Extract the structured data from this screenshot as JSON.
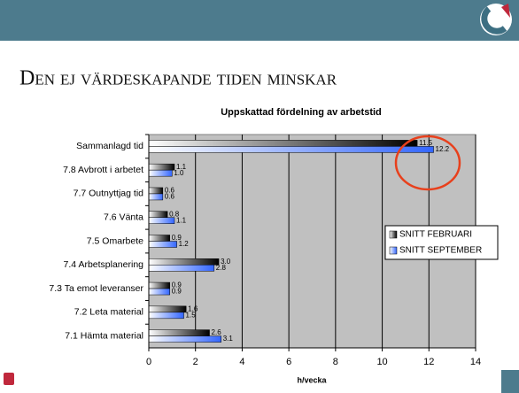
{
  "heading": "Den ej värdeskapande tiden minskar",
  "chart_data": {
    "type": "hbar",
    "title": "Uppskattad fördelning av arbetstid",
    "x_label": "h/vecka",
    "categories": [
      "Sammanlagd tid",
      "7.8 Avbrott i arbetet",
      "7.7 Outnyttjag tid",
      "7.6 Vänta",
      "7.5 Omarbete",
      "7.4 Arbetsplanering",
      "7.3 Ta emot leveranser",
      "7.2 Leta material",
      "7.1 Hämta material"
    ],
    "series": [
      {
        "name": "SNITT FEBRUARI",
        "color": "#000000",
        "values": [
          11.5,
          1.1,
          0.6,
          0.8,
          0.9,
          3.0,
          0.9,
          1.6,
          2.6
        ],
        "value_labels": [
          "11.5",
          "1.1",
          "0.6",
          "0.8",
          "0.9",
          "3.0",
          "0.9",
          "1.6",
          "2.6"
        ]
      },
      {
        "name": "SNITT SEPTEMBER",
        "color": "#3366ff",
        "values": [
          12.2,
          1.0,
          0.6,
          1.1,
          1.2,
          2.8,
          0.9,
          1.5,
          3.1
        ],
        "value_labels": [
          "12.2",
          "1.0",
          "0.6",
          "1.1",
          "1.2",
          "2.8",
          "0.9",
          "1.5",
          "3.1"
        ]
      }
    ],
    "xlim": [
      0,
      14
    ],
    "xticks": [
      0,
      2,
      4,
      6,
      8,
      10,
      12,
      14
    ],
    "grid": true,
    "legend": "right"
  }
}
